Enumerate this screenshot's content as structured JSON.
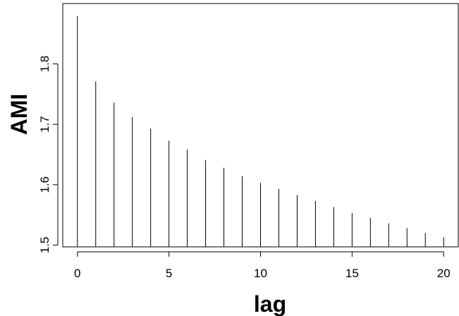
{
  "chart_data": {
    "type": "bar",
    "style": "vertical-spikes",
    "xlabel": "lag",
    "ylabel": "AMI",
    "xlim": [
      -0.8,
      20.8
    ],
    "ylim": [
      1.497,
      1.9
    ],
    "x_ticks": [
      0,
      5,
      10,
      15,
      20
    ],
    "y_ticks": [
      1.5,
      1.6,
      1.7,
      1.8
    ],
    "grid": false,
    "x": [
      0,
      1,
      2,
      3,
      4,
      5,
      6,
      7,
      8,
      9,
      10,
      11,
      12,
      13,
      14,
      15,
      16,
      17,
      18,
      19,
      20
    ],
    "values": [
      1.879,
      1.771,
      1.736,
      1.712,
      1.693,
      1.673,
      1.658,
      1.641,
      1.628,
      1.614,
      1.603,
      1.593,
      1.583,
      1.573,
      1.563,
      1.553,
      1.545,
      1.536,
      1.528,
      1.52,
      1.513
    ]
  }
}
